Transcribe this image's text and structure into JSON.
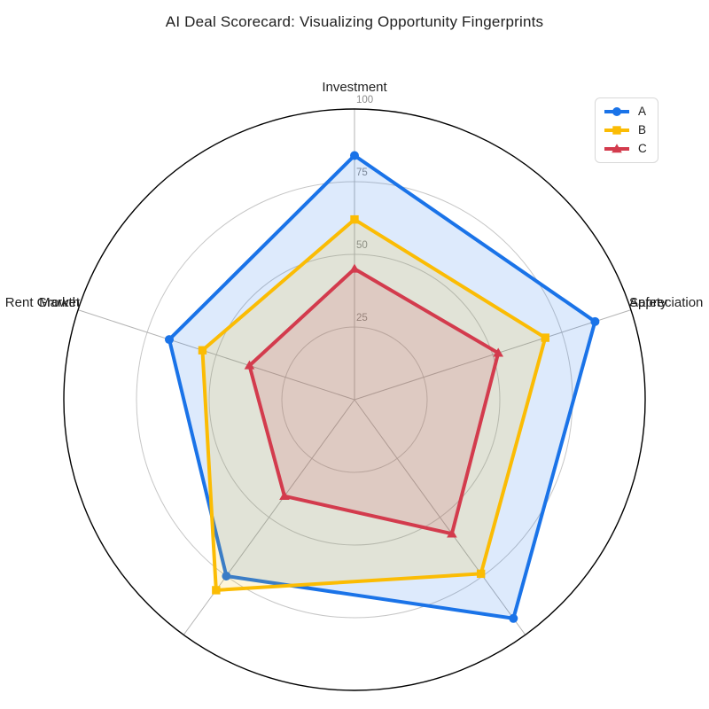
{
  "title": "AI Deal Scorecard: Visualizing Opportunity Fingerprints",
  "chart_data": {
    "type": "radar",
    "categories": [
      "Investment",
      "Safety",
      "Appreciation",
      "Rent Growth",
      "Market"
    ],
    "series": [
      {
        "name": "A",
        "color": "#1a73e8",
        "marker": "circle",
        "values": [
          84,
          87,
          93,
          75,
          67
        ]
      },
      {
        "name": "B",
        "color": "#fbbc04",
        "marker": "square",
        "values": [
          62,
          69,
          74,
          81,
          55
        ]
      },
      {
        "name": "C",
        "color": "#d33b4d",
        "marker": "triangle",
        "values": [
          45,
          52,
          57,
          41,
          38
        ]
      }
    ],
    "rmax": 100,
    "radial_ticks": [
      25,
      50,
      75,
      100
    ],
    "direction": "clockwise-from-top",
    "grid": true,
    "fill_opacity": 0.15,
    "legend_position": "top-right",
    "colors": {
      "outer_circle": "#000000",
      "grid_circle": "#c6c6c6",
      "spoke": "#b3b3b3",
      "tick_label": "#8d8d8d",
      "axis_label": "#1f1f1f",
      "background": "#ffffff"
    }
  }
}
